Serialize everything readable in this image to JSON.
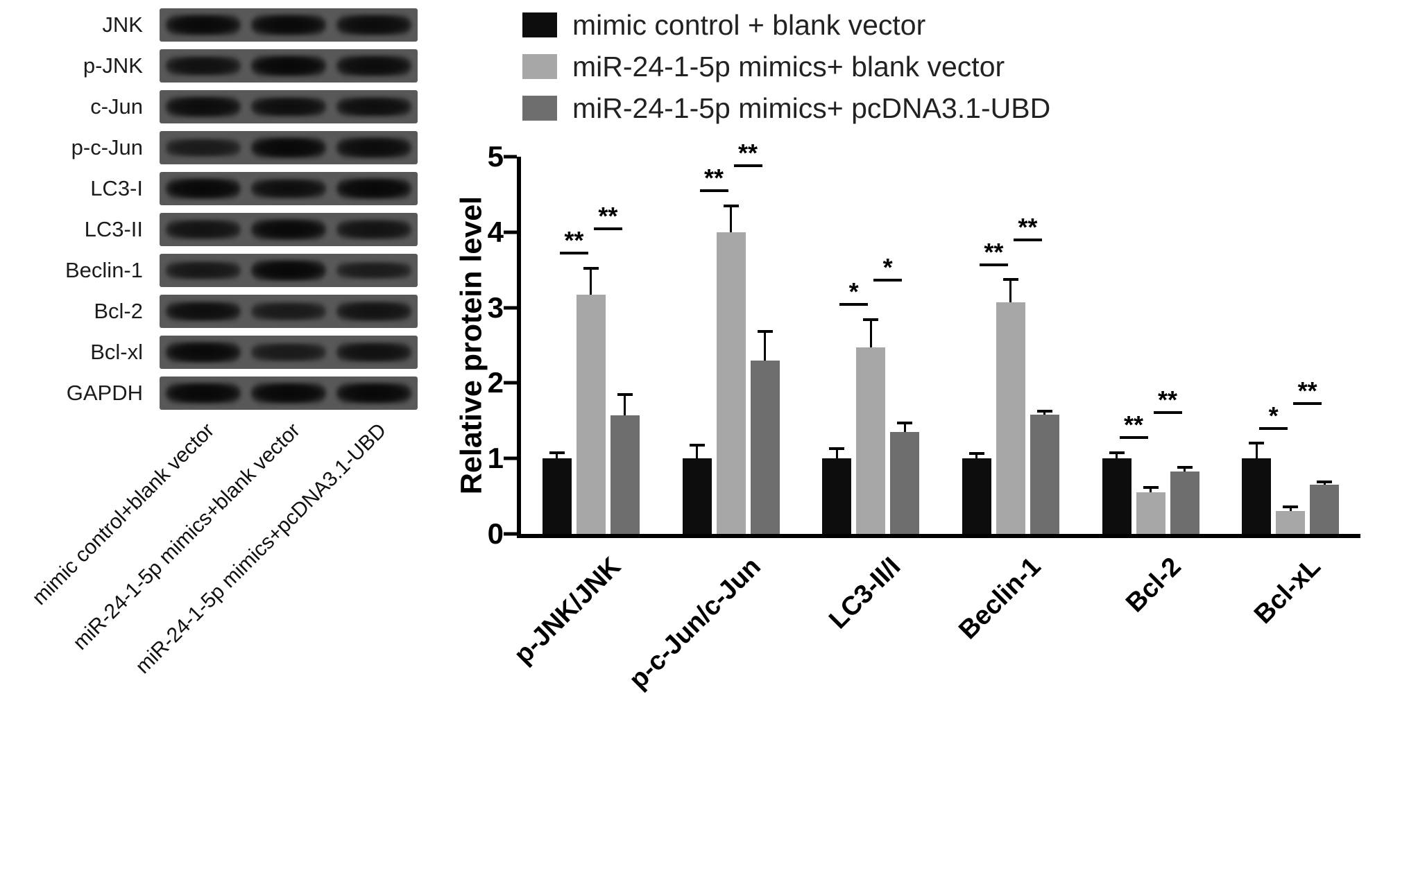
{
  "figure": {
    "blot": {
      "rows": [
        {
          "label": "JNK",
          "band_intensity": [
            0.9,
            0.9,
            0.85
          ]
        },
        {
          "label": "p-JNK",
          "band_intensity": [
            0.75,
            0.95,
            0.85
          ]
        },
        {
          "label": "c-Jun",
          "band_intensity": [
            0.85,
            0.8,
            0.8
          ]
        },
        {
          "label": "p-c-Jun",
          "band_intensity": [
            0.55,
            0.95,
            0.85
          ]
        },
        {
          "label": "LC3-I",
          "band_intensity": [
            0.95,
            0.8,
            0.95
          ]
        },
        {
          "label": "LC3-II",
          "band_intensity": [
            0.7,
            0.9,
            0.7
          ]
        },
        {
          "label": "Beclin-1",
          "band_intensity": [
            0.6,
            0.95,
            0.5
          ]
        },
        {
          "label": "Bcl-2",
          "band_intensity": [
            0.8,
            0.55,
            0.7
          ]
        },
        {
          "label": "Bcl-xl",
          "band_intensity": [
            0.9,
            0.55,
            0.75
          ]
        },
        {
          "label": "GAPDH",
          "band_intensity": [
            0.95,
            0.95,
            0.95
          ]
        }
      ],
      "lane_labels": [
        "mimic control+blank vector",
        "miR-24-1-5p mimics+blank vector",
        "miR-24-1-5p mimics+pcDNA3.1-UBD"
      ]
    }
  },
  "chart_data": {
    "type": "bar",
    "title": "",
    "ylabel": "Relative protein level",
    "xlabel": "",
    "ylim": [
      0,
      5
    ],
    "yticks": [
      0,
      1,
      2,
      3,
      4,
      5
    ],
    "grid": false,
    "legend_position": "top",
    "categories": [
      "p-JNK/JNK",
      "p-c-Jun/c-Jun",
      "LC3-II/I",
      "Beclin-1",
      "Bcl-2",
      "Bcl-xL"
    ],
    "series": [
      {
        "name": "mimic control + blank vector",
        "color": "#0d0d0d",
        "values": [
          1.0,
          1.0,
          1.0,
          1.0,
          1.0,
          1.0
        ],
        "errors": [
          0.08,
          0.18,
          0.13,
          0.07,
          0.08,
          0.2
        ]
      },
      {
        "name": "miR-24-1-5p mimics+ blank vector",
        "color": "#a7a7a7",
        "values": [
          3.17,
          4.0,
          2.47,
          3.07,
          0.55,
          0.3
        ],
        "errors": [
          0.35,
          0.35,
          0.37,
          0.3,
          0.07,
          0.06
        ]
      },
      {
        "name": "miR-24-1-5p mimics+ pcDNA3.1-UBD",
        "color": "#6e6e6e",
        "values": [
          1.57,
          2.3,
          1.35,
          1.58,
          0.83,
          0.65
        ],
        "errors": [
          0.28,
          0.38,
          0.12,
          0.05,
          0.05,
          0.04
        ]
      }
    ],
    "significance": [
      {
        "category": "p-JNK/JNK",
        "pair_1_2": "**",
        "pair_2_3": "**"
      },
      {
        "category": "p-c-Jun/c-Jun",
        "pair_1_2": "**",
        "pair_2_3": "**"
      },
      {
        "category": "LC3-II/I",
        "pair_1_2": "*",
        "pair_2_3": "*"
      },
      {
        "category": "Beclin-1",
        "pair_1_2": "**",
        "pair_2_3": "**"
      },
      {
        "category": "Bcl-2",
        "pair_1_2": "**",
        "pair_2_3": "**"
      },
      {
        "category": "Bcl-xL",
        "pair_1_2": "*",
        "pair_2_3": "**"
      }
    ]
  }
}
